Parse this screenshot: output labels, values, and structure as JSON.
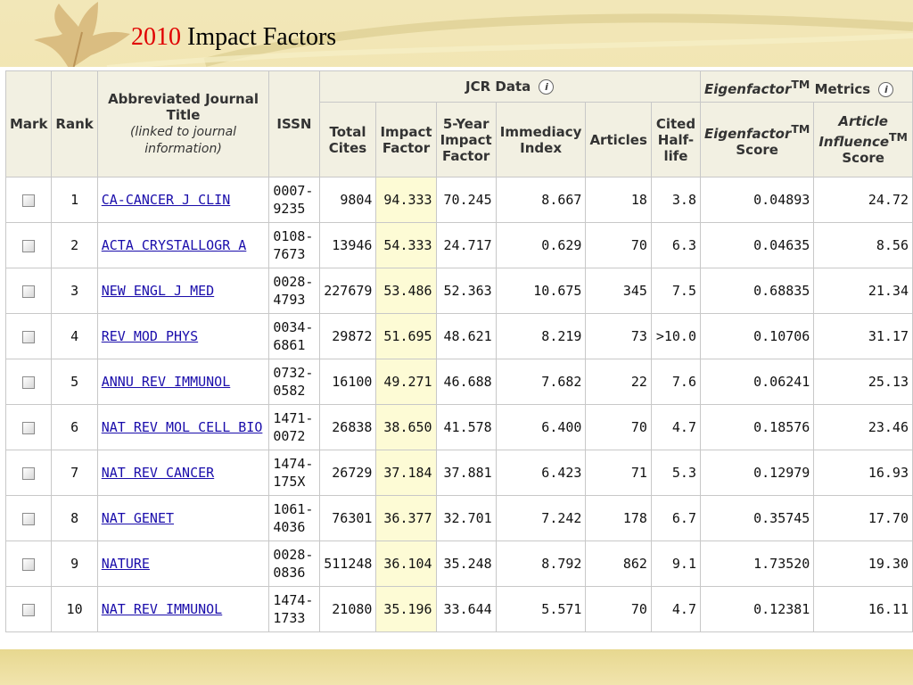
{
  "slide": {
    "title_year": "2010",
    "title_text": "Impact Factors"
  },
  "table": {
    "headers": {
      "mark": "Mark",
      "rank": "Rank",
      "journal_title": "Abbreviated Journal Title",
      "journal_sub": "(linked to journal information)",
      "issn": "ISSN",
      "jcr_group": "JCR Data",
      "eigen_group_italic": "Eigenfactor",
      "eigen_group_tm": "TM",
      "eigen_group_rest": " Metrics",
      "total_cites": "Total Cites",
      "impact_factor": "Impact Factor",
      "five_year": "5-Year Impact Factor",
      "immediacy": "Immediacy Index",
      "articles": "Articles",
      "cited_half_life": "Cited Half-life",
      "eigen_score_italic": "Eigenfactor",
      "eigen_score_tm": "TM",
      "eigen_score_rest": "Score",
      "ai_italic": "Article Influence",
      "ai_tm": "TM",
      "ai_rest": "Score",
      "info_glyph": "i"
    },
    "rows": [
      {
        "rank": "1",
        "journal": "CA-CANCER J CLIN",
        "issn1": "0007-",
        "issn2": "9235",
        "total_cites": "9804",
        "impact_factor": "94.333",
        "five_year": "70.245",
        "immediacy": "8.667",
        "articles": "18",
        "half_life": "3.8",
        "eigen": "0.04893",
        "ai": "24.72"
      },
      {
        "rank": "2",
        "journal": "ACTA CRYSTALLOGR A",
        "issn1": "0108-",
        "issn2": "7673",
        "total_cites": "13946",
        "impact_factor": "54.333",
        "five_year": "24.717",
        "immediacy": "0.629",
        "articles": "70",
        "half_life": "6.3",
        "eigen": "0.04635",
        "ai": "8.56"
      },
      {
        "rank": "3",
        "journal": "NEW ENGL J MED",
        "issn1": "0028-",
        "issn2": "4793",
        "total_cites": "227679",
        "impact_factor": "53.486",
        "five_year": "52.363",
        "immediacy": "10.675",
        "articles": "345",
        "half_life": "7.5",
        "eigen": "0.68835",
        "ai": "21.34"
      },
      {
        "rank": "4",
        "journal": "REV MOD PHYS",
        "issn1": "0034-",
        "issn2": "6861",
        "total_cites": "29872",
        "impact_factor": "51.695",
        "five_year": "48.621",
        "immediacy": "8.219",
        "articles": "73",
        "half_life": ">10.0",
        "eigen": "0.10706",
        "ai": "31.17"
      },
      {
        "rank": "5",
        "journal": "ANNU REV IMMUNOL",
        "issn1": "0732-",
        "issn2": "0582",
        "total_cites": "16100",
        "impact_factor": "49.271",
        "five_year": "46.688",
        "immediacy": "7.682",
        "articles": "22",
        "half_life": "7.6",
        "eigen": "0.06241",
        "ai": "25.13"
      },
      {
        "rank": "6",
        "journal": "NAT REV MOL CELL BIO",
        "issn1": "1471-",
        "issn2": "0072",
        "total_cites": "26838",
        "impact_factor": "38.650",
        "five_year": "41.578",
        "immediacy": "6.400",
        "articles": "70",
        "half_life": "4.7",
        "eigen": "0.18576",
        "ai": "23.46"
      },
      {
        "rank": "7",
        "journal": "NAT REV CANCER",
        "issn1": "1474-",
        "issn2": "175X",
        "total_cites": "26729",
        "impact_factor": "37.184",
        "five_year": "37.881",
        "immediacy": "6.423",
        "articles": "71",
        "half_life": "5.3",
        "eigen": "0.12979",
        "ai": "16.93"
      },
      {
        "rank": "8",
        "journal": "NAT GENET",
        "issn1": "1061-",
        "issn2": "4036",
        "total_cites": "76301",
        "impact_factor": "36.377",
        "five_year": "32.701",
        "immediacy": "7.242",
        "articles": "178",
        "half_life": "6.7",
        "eigen": "0.35745",
        "ai": "17.70"
      },
      {
        "rank": "9",
        "journal": "NATURE",
        "issn1": "0028-",
        "issn2": "0836",
        "total_cites": "511248",
        "impact_factor": "36.104",
        "five_year": "35.248",
        "immediacy": "8.792",
        "articles": "862",
        "half_life": "9.1",
        "eigen": "1.73520",
        "ai": "19.30"
      },
      {
        "rank": "10",
        "journal": "NAT REV IMMUNOL",
        "issn1": "1474-",
        "issn2": "1733",
        "total_cites": "21080",
        "impact_factor": "35.196",
        "five_year": "33.644",
        "immediacy": "5.571",
        "articles": "70",
        "half_life": "4.7",
        "eigen": "0.12381",
        "ai": "16.11"
      }
    ]
  },
  "colors": {
    "title_year": "#e00000",
    "header_bg": "#f2f0e2",
    "impact_highlight": "#fdfbd5",
    "link": "#1a0dab",
    "slide_bg": "#eedf9f"
  }
}
